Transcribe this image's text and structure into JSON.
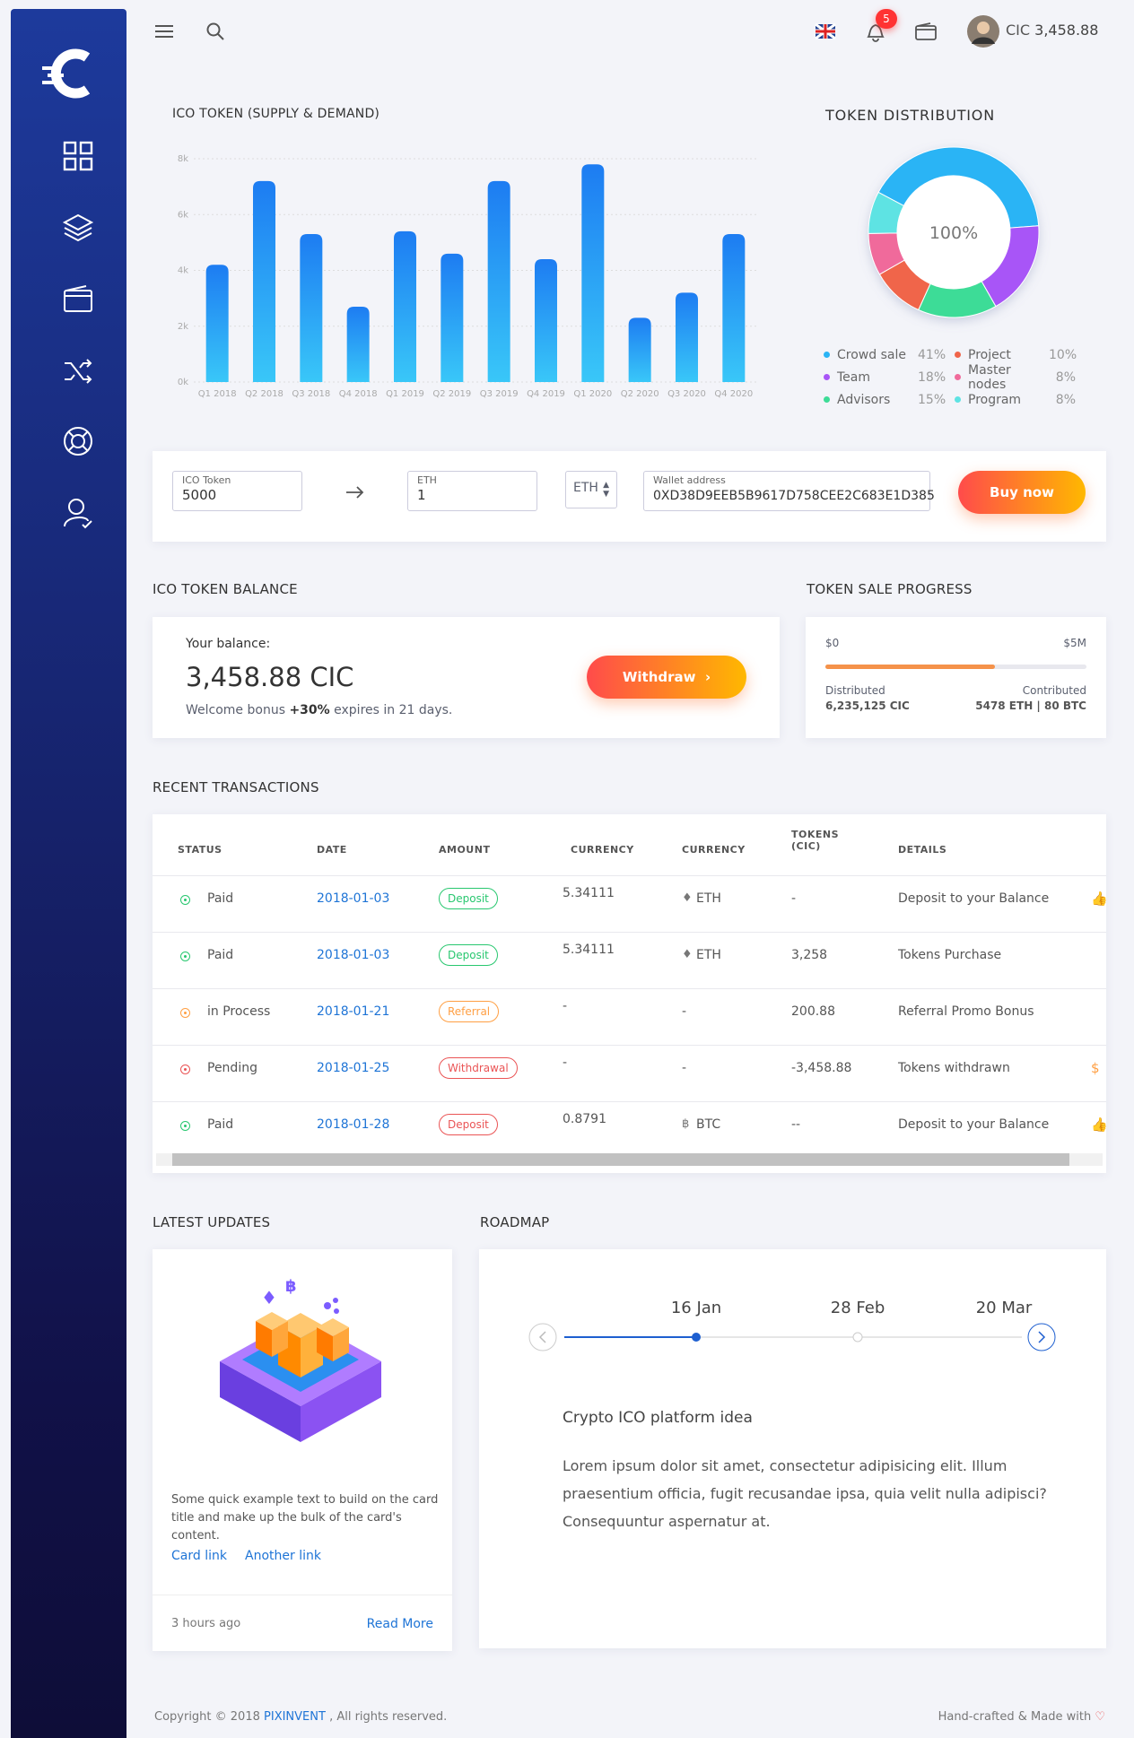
{
  "header": {
    "notifications": 5,
    "currency": "CIC",
    "balance": "3,458.88"
  },
  "chart_data": [
    {
      "type": "bar",
      "title": "ICO TOKEN (SUPPLY & DEMAND)",
      "categories": [
        "Q1 2018",
        "Q2 2018",
        "Q3 2018",
        "Q4 2018",
        "Q1 2019",
        "Q2 2019",
        "Q3 2019",
        "Q4 2019",
        "Q1 2020",
        "Q2 2020",
        "Q3 2020",
        "Q4 2020"
      ],
      "values": [
        4200,
        7200,
        5300,
        2700,
        5400,
        4600,
        7200,
        4400,
        7800,
        2300,
        3200,
        5300
      ],
      "ylim": [
        0,
        8000
      ],
      "yticks": [
        {
          "value": 0,
          "label": "0k"
        },
        {
          "value": 2000,
          "label": "2k"
        },
        {
          "value": 4000,
          "label": "4k"
        },
        {
          "value": 6000,
          "label": "6k"
        },
        {
          "value": 8000,
          "label": "8k"
        }
      ],
      "grid": true,
      "gradient": [
        "#1d7cf2",
        "#39c7f8"
      ]
    },
    {
      "type": "pie",
      "title": "TOKEN DISTRIBUTION",
      "center_label": "100%",
      "categories": [
        "Crowd sale",
        "Team",
        "Advisors",
        "Project",
        "Master nodes",
        "Program"
      ],
      "values": [
        41,
        18,
        15,
        10,
        8,
        8
      ],
      "value_labels": [
        "41%",
        "18%",
        "15%",
        "10%",
        "8%",
        "8%"
      ],
      "colors": [
        "#2ab4f5",
        "#a855f7",
        "#3ddc97",
        "#f0654a",
        "#f06a9b",
        "#5ee3e3"
      ]
    }
  ],
  "form": {
    "token_label": "ICO Token",
    "token_value": "5000",
    "eth_label": "ETH",
    "eth_value": "1",
    "currency_select": "ETH",
    "wallet_label": "Wallet address",
    "wallet_value": "0XD38D9EEB5B9617D758CEE2C683E1D385",
    "button": "Buy now"
  },
  "balance": {
    "title": "ICO TOKEN BALANCE",
    "label": "Your balance:",
    "amount": "3,458.88 CIC",
    "bonus_prefix": "Welcome bonus",
    "bonus_value": "+30%",
    "bonus_suffix": "expires in 21 days.",
    "button": "Withdraw"
  },
  "progress": {
    "title": "TOKEN SALE PROGRESS",
    "min_label": "$0",
    "max_label": "$5M",
    "percent": 65,
    "distributed_label": "Distributed",
    "distributed_value": "6,235,125 CIC",
    "contributed_label": "Contributed",
    "contributed_value": "5478 ETH | 80 BTC"
  },
  "transactions": {
    "title": "RECENT TRANSACTIONS",
    "columns": [
      "STATUS",
      "DATE",
      "AMOUNT",
      "CURRENCY",
      "CURRENCY",
      "TOKENS (CIC)",
      "DETAILS"
    ],
    "rows": [
      [
        "Paid",
        "2018-01-03",
        "Deposit",
        "5.34111",
        "ETH",
        "-",
        "Deposit to your Balance"
      ],
      [
        "Paid",
        "2018-01-03",
        "Deposit",
        "5.34111",
        "ETH",
        "3,258",
        "Tokens Purchase"
      ],
      [
        "in Process",
        "2018-01-21",
        "Referral",
        "-",
        "-",
        "200.88",
        "Referral Promo Bonus"
      ],
      [
        "Pending",
        "2018-01-25",
        "Withdrawal",
        "-",
        "-",
        "-3,458.88",
        "Tokens withdrawn"
      ],
      [
        "Paid",
        "2018-01-28",
        "Deposit",
        "0.8791",
        "BTC",
        "--",
        "Deposit to your Balance"
      ]
    ],
    "status_colors": [
      "#28c76f",
      "#28c76f",
      "#ff9f43",
      "#ea5455",
      "#28c76f"
    ],
    "badge_colors": [
      "#28c76f",
      "#28c76f",
      "#ff9f43",
      "#ea5455",
      "#ea5455"
    ]
  },
  "updates": {
    "title": "LATEST UPDATES",
    "text": "Some quick example text to build on the card title and make up the bulk of the card's content.",
    "link1": "Card link",
    "link2": "Another link",
    "time": "3 hours ago",
    "read_more": "Read More"
  },
  "roadmap": {
    "title": "ROADMAP",
    "dates": [
      "16 Jan",
      "28 Feb",
      "20 Mar"
    ],
    "heading": "Crypto ICO platform idea",
    "text": "Lorem ipsum dolor sit amet, consectetur adipisicing elit. Illum praesentium officia, fugit recusandae ipsa, quia velit nulla adipisci? Consequuntur aspernatur at."
  },
  "footer": {
    "copyright": "Copyright © 2018",
    "company": "PIXINVENT",
    "rights": ", All rights reserved.",
    "made": "Hand-crafted & Made with"
  }
}
